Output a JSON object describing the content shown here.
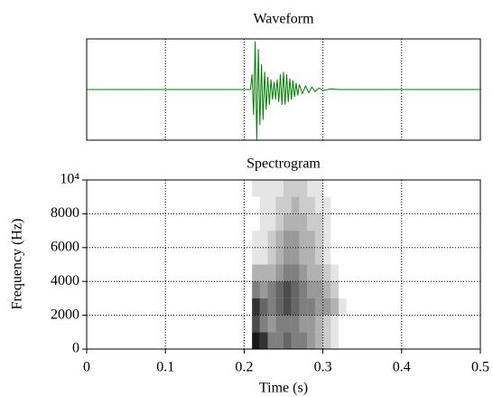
{
  "chart_data": [
    {
      "type": "line",
      "title": "Waveform",
      "color": "#008000",
      "x": [
        0,
        0.208,
        0.21,
        0.212,
        0.214,
        0.216,
        0.218,
        0.22,
        0.222,
        0.224,
        0.226,
        0.228,
        0.23,
        0.232,
        0.234,
        0.236,
        0.238,
        0.24,
        0.242,
        0.244,
        0.246,
        0.248,
        0.25,
        0.252,
        0.254,
        0.256,
        0.258,
        0.26,
        0.262,
        0.264,
        0.266,
        0.268,
        0.27,
        0.274,
        0.278,
        0.282,
        0.286,
        0.29,
        0.295,
        0.3,
        0.31,
        0.32,
        0.5
      ],
      "values": [
        0,
        0,
        0.3,
        -0.5,
        0.95,
        -1.0,
        0.8,
        -0.7,
        0.5,
        -0.6,
        0.35,
        -0.4,
        0.25,
        -0.3,
        0.2,
        -0.2,
        0.15,
        -0.2,
        0.2,
        -0.25,
        0.3,
        -0.3,
        0.35,
        -0.3,
        0.3,
        -0.25,
        0.22,
        -0.2,
        0.18,
        -0.15,
        0.13,
        -0.12,
        0.1,
        -0.08,
        0.07,
        -0.06,
        0.05,
        -0.04,
        0.03,
        -0.02,
        0.01,
        0,
        0
      ],
      "xlim": [
        0,
        0.5
      ],
      "ylim": [
        -1,
        1
      ],
      "xgrid": [
        0.1,
        0.2,
        0.3,
        0.4
      ]
    },
    {
      "type": "heatmap",
      "title": "Spectrogram",
      "xlabel": "Time (s)",
      "ylabel": "Frequency (Hz)",
      "color": "#000000",
      "x_bins": [
        0.21,
        0.22,
        0.23,
        0.24,
        0.25,
        0.26,
        0.27,
        0.28,
        0.29,
        0.3,
        0.31,
        0.32,
        0.33
      ],
      "y_bins": [
        0,
        1000,
        2000,
        3000,
        4000,
        5000,
        6000,
        7000,
        8000,
        9000,
        10000
      ],
      "z": [
        [
          0.9,
          0.8,
          0.5,
          0.5,
          0.6,
          0.5,
          0.5,
          0.4,
          0.3,
          0.2,
          0.1,
          0
        ],
        [
          0.7,
          0.5,
          0.4,
          0.5,
          0.5,
          0.5,
          0.4,
          0.4,
          0.3,
          0.2,
          0.1,
          0
        ],
        [
          0.8,
          0.6,
          0.5,
          0.6,
          0.7,
          0.6,
          0.5,
          0.5,
          0.4,
          0.4,
          0.3,
          0.1
        ],
        [
          0.5,
          0.4,
          0.5,
          0.6,
          0.7,
          0.6,
          0.5,
          0.4,
          0.4,
          0.3,
          0.2,
          0
        ],
        [
          0.3,
          0.3,
          0.3,
          0.4,
          0.5,
          0.5,
          0.4,
          0.3,
          0.3,
          0.2,
          0.1,
          0
        ],
        [
          0.1,
          0.1,
          0.2,
          0.3,
          0.4,
          0.4,
          0.3,
          0.3,
          0.2,
          0.1,
          0,
          0
        ],
        [
          0.1,
          0.1,
          0.2,
          0.3,
          0.4,
          0.4,
          0.3,
          0.3,
          0.2,
          0.1,
          0,
          0
        ],
        [
          0,
          0.1,
          0.1,
          0.2,
          0.3,
          0.3,
          0.3,
          0.2,
          0.2,
          0.1,
          0,
          0
        ],
        [
          0,
          0.1,
          0.1,
          0.2,
          0.2,
          0.3,
          0.2,
          0.2,
          0.1,
          0.1,
          0,
          0
        ],
        [
          0.1,
          0.1,
          0.1,
          0.1,
          0.2,
          0.2,
          0.2,
          0.1,
          0.1,
          0,
          0,
          0
        ]
      ],
      "xlim": [
        0,
        0.5
      ],
      "ylim": [
        0,
        10000
      ],
      "xticks": [
        0,
        0.1,
        0.2,
        0.3,
        0.4,
        0.5
      ],
      "yticks": [
        0,
        2000,
        4000,
        6000,
        8000,
        {
          "value": 10000,
          "label": "10⁴"
        }
      ],
      "grid": true
    }
  ]
}
